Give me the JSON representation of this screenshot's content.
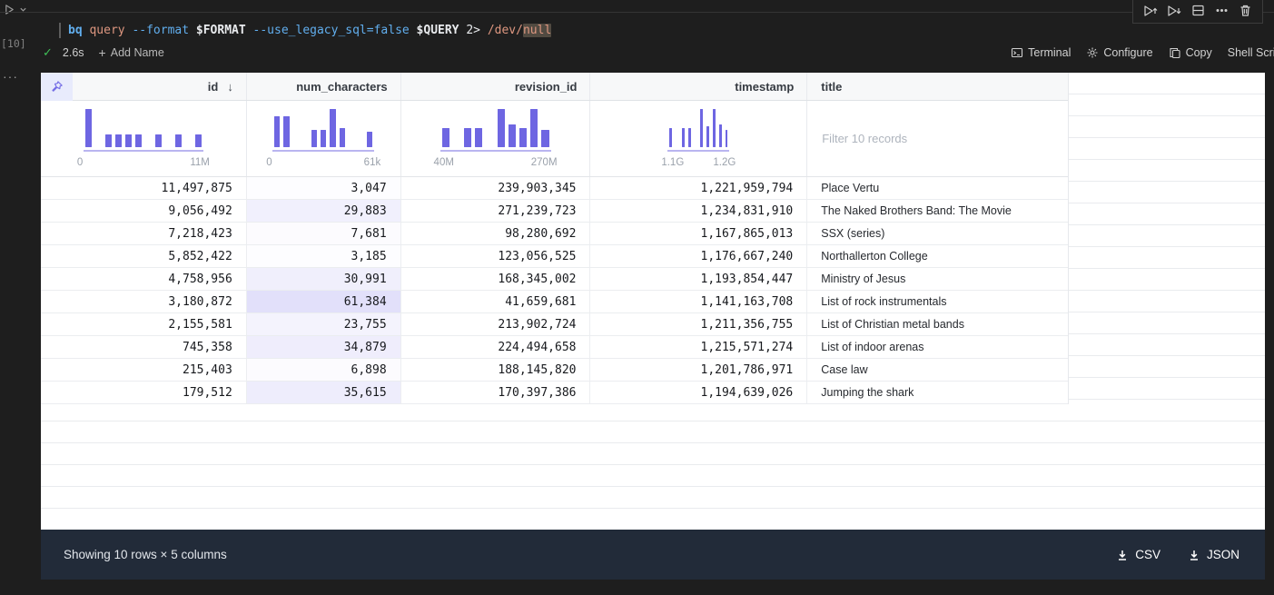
{
  "cell": {
    "execution_count": "[10]",
    "runtime": "2.6s",
    "add_name_label": "Add Name",
    "command_tokens": [
      {
        "text": "bq ",
        "color": "#61aeee",
        "bold": true
      },
      {
        "text": "query ",
        "color": "#de9780",
        "bold": false
      },
      {
        "text": "--format ",
        "color": "#61aeee",
        "bold": false
      },
      {
        "text": "$FORMAT ",
        "color": "#e9ebee",
        "bold": true
      },
      {
        "text": "--use_legacy_sql=false ",
        "color": "#61aeee",
        "bold": false
      },
      {
        "text": "$QUERY ",
        "color": "#e9ebee",
        "bold": true
      },
      {
        "text": "2> ",
        "color": "#e9ebee",
        "bold": false
      },
      {
        "text": "/dev/",
        "color": "#de9780",
        "bold": false
      },
      {
        "text": "null",
        "color": "#de9780",
        "bold": false,
        "highlight": true
      }
    ],
    "actions": [
      {
        "label": "Terminal",
        "icon": "terminal-icon"
      },
      {
        "label": "Configure",
        "icon": "gear-icon"
      },
      {
        "label": "Copy",
        "icon": "copy-icon"
      },
      {
        "label": "Shell Script",
        "icon": ""
      }
    ],
    "hover_toolbar": [
      "run-above-icon",
      "run-below-icon",
      "split-cell-icon",
      "more-icon",
      "delete-icon"
    ]
  },
  "table": {
    "filter_placeholder": "Filter 10 records",
    "accent_color": "#6e66e2",
    "columns": [
      {
        "name": "id",
        "align": "right",
        "sort": "desc",
        "hist": {
          "min_label": "0",
          "max_label": "11M",
          "bars": [
            1,
            0,
            0.33,
            0.33,
            0.33,
            0.33,
            0,
            0.33,
            0,
            0.33,
            0,
            0.33
          ]
        }
      },
      {
        "name": "num_characters",
        "align": "right",
        "hist": {
          "min_label": "0",
          "max_label": "61k",
          "bars": [
            0.8,
            0.8,
            0,
            0,
            0.45,
            0.45,
            1,
            0.5,
            0,
            0,
            0.4
          ]
        }
      },
      {
        "name": "revision_id",
        "align": "right",
        "hist": {
          "min_label": "40M",
          "max_label": "270M",
          "bars": [
            0.5,
            0,
            0.5,
            0.5,
            0,
            1,
            0.6,
            0.5,
            1,
            0.45
          ]
        }
      },
      {
        "name": "timestamp",
        "align": "right",
        "hist": {
          "min_label": "1.1G",
          "max_label": "1.2G",
          "bars": [
            0.5,
            0,
            0.5,
            0.5,
            0,
            1,
            0.55,
            1,
            0.6,
            0.45
          ]
        }
      },
      {
        "name": "title",
        "align": "left",
        "hist": null
      }
    ],
    "rows": [
      {
        "id": "11,497,875",
        "num_characters": "3,047",
        "nc": 3047,
        "revision_id": "239,903,345",
        "timestamp": "1,221,959,794",
        "title": "Place Vertu"
      },
      {
        "id": "9,056,492",
        "num_characters": "29,883",
        "nc": 29883,
        "revision_id": "271,239,723",
        "timestamp": "1,234,831,910",
        "title": "The Naked Brothers Band: The Movie"
      },
      {
        "id": "7,218,423",
        "num_characters": "7,681",
        "nc": 7681,
        "revision_id": "98,280,692",
        "timestamp": "1,167,865,013",
        "title": "SSX (series)"
      },
      {
        "id": "5,852,422",
        "num_characters": "3,185",
        "nc": 3185,
        "revision_id": "123,056,525",
        "timestamp": "1,176,667,240",
        "title": "Northallerton College"
      },
      {
        "id": "4,758,956",
        "num_characters": "30,991",
        "nc": 30991,
        "revision_id": "168,345,002",
        "timestamp": "1,193,854,447",
        "title": "Ministry of Jesus"
      },
      {
        "id": "3,180,872",
        "num_characters": "61,384",
        "nc": 61384,
        "revision_id": "41,659,681",
        "timestamp": "1,141,163,708",
        "title": "List of rock instrumentals"
      },
      {
        "id": "2,155,581",
        "num_characters": "23,755",
        "nc": 23755,
        "revision_id": "213,902,724",
        "timestamp": "1,211,356,755",
        "title": "List of Christian metal bands"
      },
      {
        "id": "745,358",
        "num_characters": "34,879",
        "nc": 34879,
        "revision_id": "224,494,658",
        "timestamp": "1,215,571,274",
        "title": "List of indoor arenas"
      },
      {
        "id": "215,403",
        "num_characters": "6,898",
        "nc": 6898,
        "revision_id": "188,145,820",
        "timestamp": "1,201,786,971",
        "title": "Case law"
      },
      {
        "id": "179,512",
        "num_characters": "35,615",
        "nc": 35615,
        "revision_id": "170,397,386",
        "timestamp": "1,194,639,026",
        "title": "Jumping the shark"
      }
    ]
  },
  "footer": {
    "summary": "Showing 10 rows × 5 columns",
    "downloads": [
      "CSV",
      "JSON"
    ]
  }
}
